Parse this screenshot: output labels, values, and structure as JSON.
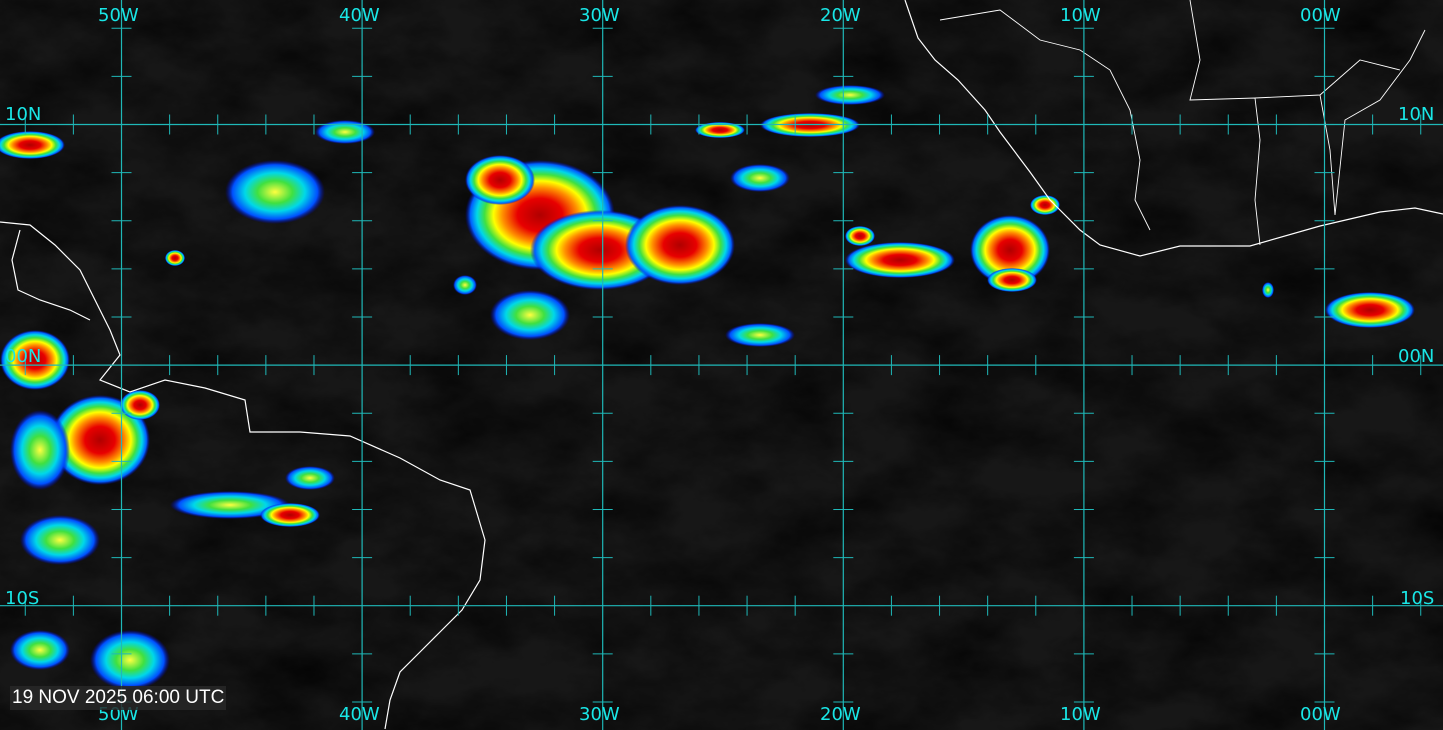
{
  "map": {
    "timestamp": "19 NOV 2025 06:00 UTC",
    "longitudes": [
      "50W",
      "40W",
      "30W",
      "20W",
      "10W",
      "00W"
    ],
    "latitudes": [
      "10N",
      "00N",
      "10S"
    ],
    "colors": {
      "grid": "#1fb8b8",
      "labels": "#19e6e6",
      "coastline": "#ffffff",
      "background": "#161616"
    },
    "colormap": [
      "#0000c8",
      "#00a0ff",
      "#00e0e0",
      "#40e040",
      "#ffff00",
      "#ff8000",
      "#e00000",
      "#900000"
    ]
  }
}
